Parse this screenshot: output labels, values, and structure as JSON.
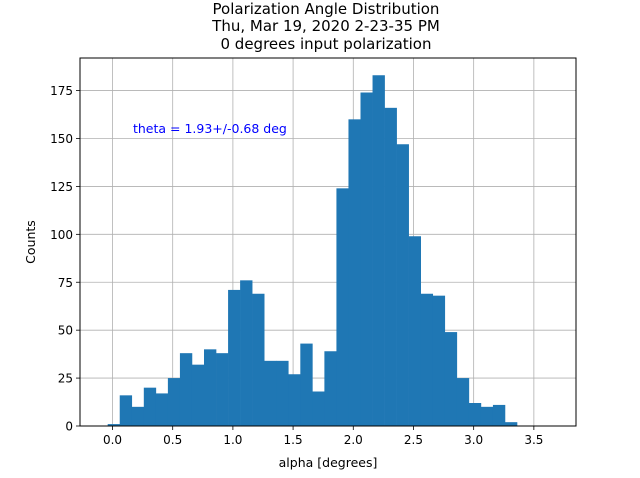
{
  "chart_data": {
    "type": "bar",
    "title_lines": [
      "Polarization Angle Distribution",
      "Thu, Mar 19, 2020 2-23-35 PM",
      "0 degrees input polarization"
    ],
    "xlabel": "alpha [degrees]",
    "ylabel": "Counts",
    "xlim": [
      -0.27,
      3.85
    ],
    "ylim": [
      0,
      192
    ],
    "x_ticks": [
      0.0,
      0.5,
      1.0,
      1.5,
      2.0,
      2.5,
      3.0,
      3.5
    ],
    "x_tick_labels": [
      "0.0",
      "0.5",
      "1.0",
      "1.5",
      "2.0",
      "2.5",
      "3.0",
      "3.5"
    ],
    "y_ticks": [
      0,
      25,
      50,
      75,
      100,
      125,
      150,
      175
    ],
    "y_tick_labels": [
      "0",
      "25",
      "50",
      "75",
      "100",
      "125",
      "150",
      "175"
    ],
    "grid": true,
    "bar_color": "#1f77b4",
    "bin_width": 0.1,
    "bins": [
      {
        "x0": -0.04,
        "value": 1
      },
      {
        "x0": 0.06,
        "value": 16
      },
      {
        "x0": 0.16,
        "value": 10
      },
      {
        "x0": 0.26,
        "value": 20
      },
      {
        "x0": 0.36,
        "value": 17
      },
      {
        "x0": 0.46,
        "value": 25
      },
      {
        "x0": 0.56,
        "value": 38
      },
      {
        "x0": 0.66,
        "value": 32
      },
      {
        "x0": 0.76,
        "value": 40
      },
      {
        "x0": 0.86,
        "value": 38
      },
      {
        "x0": 0.96,
        "value": 71
      },
      {
        "x0": 1.06,
        "value": 76
      },
      {
        "x0": 1.16,
        "value": 69
      },
      {
        "x0": 1.26,
        "value": 34
      },
      {
        "x0": 1.36,
        "value": 34
      },
      {
        "x0": 1.46,
        "value": 27
      },
      {
        "x0": 1.56,
        "value": 43
      },
      {
        "x0": 1.66,
        "value": 18
      },
      {
        "x0": 1.76,
        "value": 39
      },
      {
        "x0": 1.86,
        "value": 124
      },
      {
        "x0": 1.96,
        "value": 160
      },
      {
        "x0": 2.06,
        "value": 174
      },
      {
        "x0": 2.16,
        "value": 183
      },
      {
        "x0": 2.26,
        "value": 166
      },
      {
        "x0": 2.36,
        "value": 147
      },
      {
        "x0": 2.46,
        "value": 99
      },
      {
        "x0": 2.56,
        "value": 69
      },
      {
        "x0": 2.66,
        "value": 68
      },
      {
        "x0": 2.76,
        "value": 49
      },
      {
        "x0": 2.86,
        "value": 25
      },
      {
        "x0": 2.96,
        "value": 12
      },
      {
        "x0": 3.06,
        "value": 10
      },
      {
        "x0": 3.16,
        "value": 11
      },
      {
        "x0": 3.26,
        "value": 2
      },
      {
        "x0": 3.36,
        "value": 0
      },
      {
        "x0": 3.46,
        "value": 0
      },
      {
        "x0": 3.56,
        "value": 0
      }
    ],
    "annotation": {
      "text": "theta = 1.93+/-0.68 deg",
      "color": "#0000ff",
      "x": 0.17,
      "y": 153
    }
  }
}
